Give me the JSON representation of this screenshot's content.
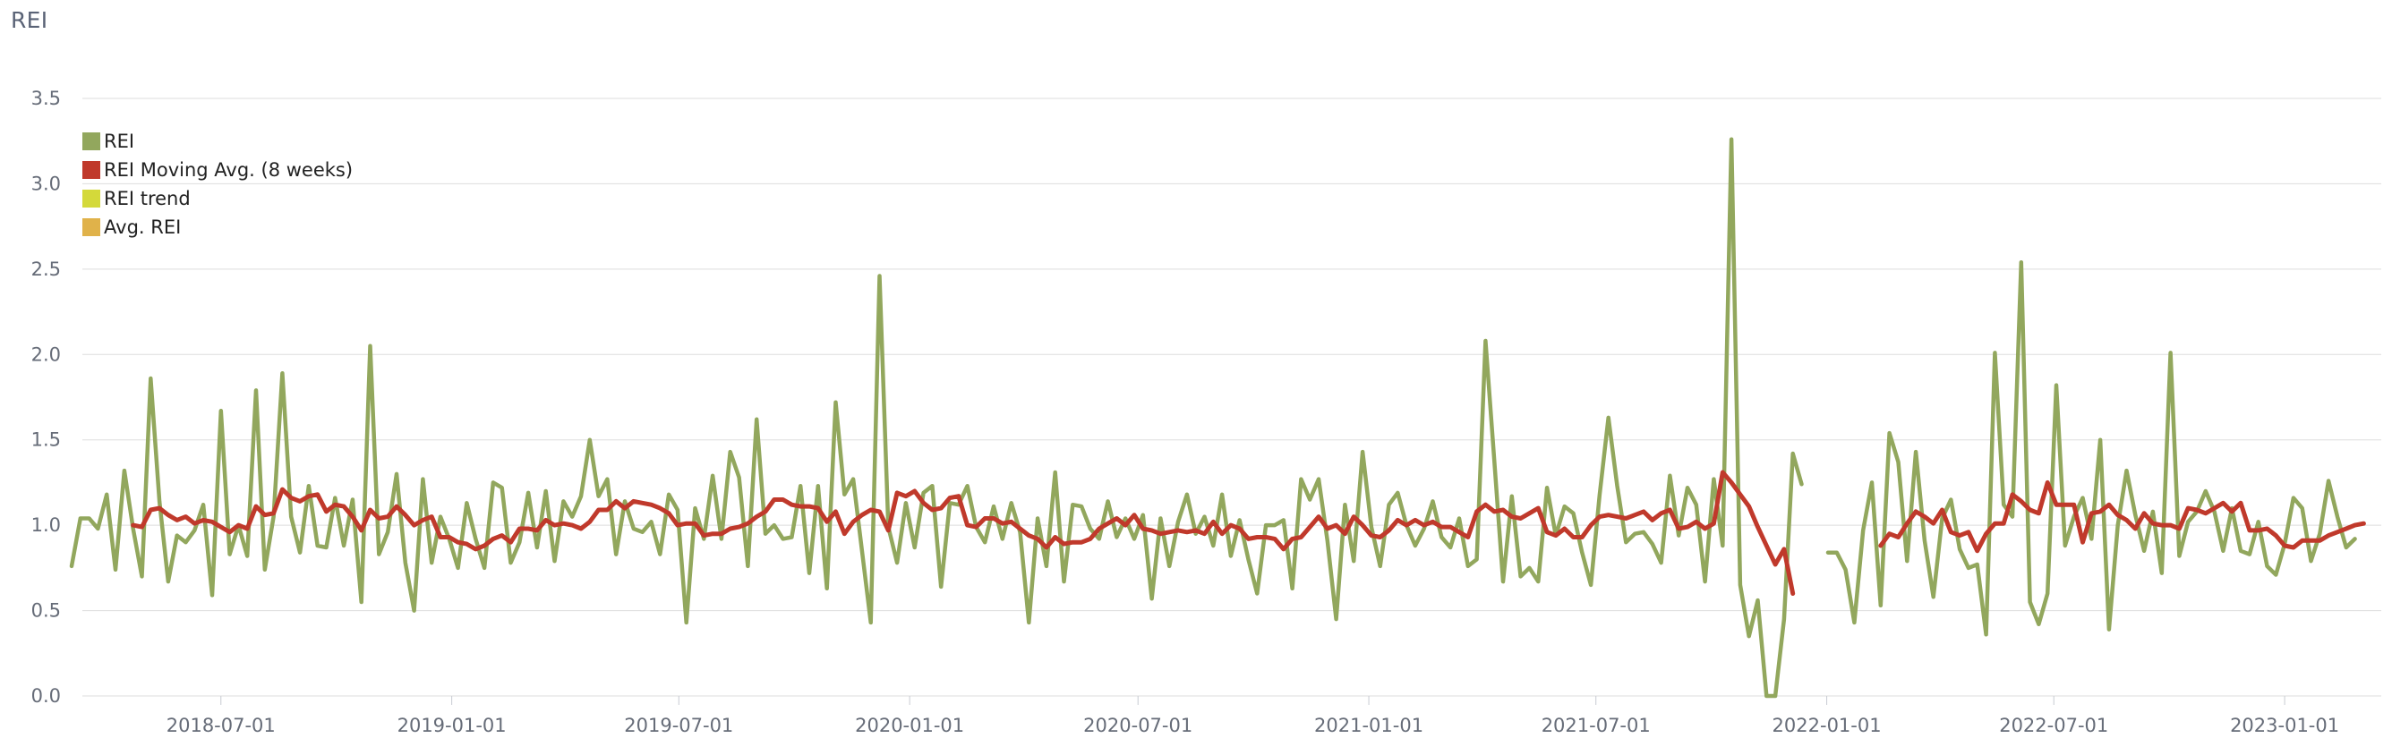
{
  "panel": {
    "title": "REI"
  },
  "colors": {
    "rei": "#92a75d",
    "moving_avg": "#c0392b",
    "trend": "#d4d93a",
    "avg": "#e0b24a",
    "grid": "#dddddd",
    "axis_text": "#666c78"
  },
  "chart_data": {
    "type": "line",
    "title": "REI",
    "xlabel": "",
    "ylabel": "",
    "x_range": [
      "2018-03-04",
      "2023-03-19"
    ],
    "ylim": [
      0,
      3.5
    ],
    "yticks": [
      0.0,
      0.5,
      1.0,
      1.5,
      2.0,
      2.5,
      3.0,
      3.5
    ],
    "ytick_labels": [
      "0.0",
      "0.5",
      "1.0",
      "1.5",
      "2.0",
      "2.5",
      "3.0",
      "3.5"
    ],
    "xticks": [
      "2018-07-01",
      "2019-01-01",
      "2019-07-01",
      "2020-01-01",
      "2020-07-01",
      "2021-01-01",
      "2021-07-01",
      "2022-01-01",
      "2022-07-01",
      "2023-01-01"
    ],
    "grid": true,
    "legend_position": "top-left",
    "x_start": "2018-03-04",
    "x_step_days": 7,
    "series": [
      {
        "name": "REI",
        "color": "#92a75d",
        "values": [
          0.76,
          1.04,
          1.04,
          0.98,
          1.18,
          0.74,
          1.32,
          0.98,
          0.7,
          1.86,
          1.14,
          0.67,
          0.94,
          0.9,
          0.97,
          1.12,
          0.59,
          1.67,
          0.83,
          1.0,
          0.82,
          1.79,
          0.74,
          1.05,
          1.89,
          1.05,
          0.84,
          1.23,
          0.88,
          0.87,
          1.16,
          0.88,
          1.15,
          0.55,
          2.05,
          0.83,
          0.96,
          1.3,
          0.78,
          0.5,
          1.27,
          0.78,
          1.05,
          0.92,
          0.75,
          1.13,
          0.92,
          0.75,
          1.25,
          1.22,
          0.78,
          0.9,
          1.19,
          0.87,
          1.2,
          0.79,
          1.14,
          1.05,
          1.17,
          1.5,
          1.17,
          1.27,
          0.83,
          1.14,
          0.98,
          0.96,
          1.02,
          0.83,
          1.18,
          1.09,
          0.43,
          1.1,
          0.92,
          1.29,
          0.92,
          1.43,
          1.28,
          0.76,
          1.62,
          0.95,
          1.0,
          0.92,
          0.93,
          1.23,
          0.72,
          1.23,
          0.63,
          1.72,
          1.18,
          1.27,
          0.85,
          0.43,
          2.46,
          0.99,
          0.78,
          1.13,
          0.87,
          1.19,
          1.23,
          0.64,
          1.13,
          1.12,
          1.23,
          0.99,
          0.9,
          1.11,
          0.92,
          1.13,
          0.96,
          0.43,
          1.04,
          0.76,
          1.31,
          0.67,
          1.12,
          1.11,
          0.98,
          0.92,
          1.14,
          0.93,
          1.04,
          0.92,
          1.06,
          0.57,
          1.04,
          0.76,
          1.02,
          1.18,
          0.95,
          1.05,
          0.88,
          1.18,
          0.82,
          1.03,
          0.8,
          0.6,
          1.0,
          1.0,
          1.03,
          0.63,
          1.27,
          1.15,
          1.27,
          0.91,
          0.45,
          1.12,
          0.79,
          1.43,
          0.99,
          0.76,
          1.12,
          1.19,
          1.0,
          0.88,
          0.98,
          1.14,
          0.93,
          0.87,
          1.04,
          0.76,
          0.8,
          2.08,
          1.38,
          0.67,
          1.17,
          0.7,
          0.75,
          0.67,
          1.22,
          0.94,
          1.11,
          1.07,
          0.84,
          0.65,
          1.18,
          1.63,
          1.23,
          0.9,
          0.95,
          0.96,
          0.89,
          0.78,
          1.29,
          0.94,
          1.22,
          1.12,
          0.67,
          1.27,
          0.88,
          3.26,
          0.65,
          0.35,
          0.56,
          0.0,
          0.0,
          0.45,
          1.42,
          1.24,
          null,
          null,
          0.84,
          0.84,
          0.74,
          0.43,
          0.97,
          1.25,
          0.53,
          1.54,
          1.37,
          0.79,
          1.43,
          0.91,
          0.58,
          1.04,
          1.15,
          0.86,
          0.75,
          0.77,
          0.36,
          2.01,
          1.12,
          1.05,
          2.54,
          0.55,
          0.42,
          0.6,
          1.82,
          0.88,
          1.05,
          1.16,
          0.92,
          1.5,
          0.39,
          1.0,
          1.32,
          1.06,
          0.85,
          1.08,
          0.72,
          2.01,
          0.82,
          1.02,
          1.08,
          1.2,
          1.08,
          0.85,
          1.1,
          0.85,
          0.83,
          1.02,
          0.76,
          0.71,
          0.89,
          1.16,
          1.1,
          0.79,
          0.95,
          1.26,
          1.05,
          0.87,
          0.92
        ]
      },
      {
        "name": "REI Moving Avg. (8 weeks)",
        "color": "#c0392b",
        "values": [
          null,
          null,
          null,
          null,
          null,
          null,
          null,
          1.0,
          0.99,
          1.09,
          1.1,
          1.06,
          1.03,
          1.05,
          1.01,
          1.03,
          1.02,
          0.99,
          0.96,
          1.0,
          0.98,
          1.11,
          1.06,
          1.07,
          1.21,
          1.16,
          1.14,
          1.17,
          1.18,
          1.08,
          1.12,
          1.11,
          1.05,
          0.97,
          1.09,
          1.04,
          1.05,
          1.11,
          1.06,
          1.0,
          1.03,
          1.05,
          0.93,
          0.93,
          0.9,
          0.89,
          0.86,
          0.88,
          0.92,
          0.94,
          0.9,
          0.98,
          0.98,
          0.97,
          1.03,
          1.0,
          1.01,
          1.0,
          0.98,
          1.02,
          1.09,
          1.09,
          1.14,
          1.1,
          1.14,
          1.13,
          1.12,
          1.1,
          1.07,
          1.0,
          1.01,
          1.01,
          0.94,
          0.95,
          0.95,
          0.98,
          0.99,
          1.01,
          1.05,
          1.08,
          1.15,
          1.15,
          1.12,
          1.11,
          1.11,
          1.1,
          1.02,
          1.08,
          0.95,
          1.02,
          1.06,
          1.09,
          1.08,
          0.97,
          1.19,
          1.17,
          1.2,
          1.13,
          1.09,
          1.1,
          1.16,
          1.17,
          1.0,
          0.99,
          1.04,
          1.04,
          1.01,
          1.02,
          0.98,
          0.94,
          0.92,
          0.87,
          0.93,
          0.89,
          0.9,
          0.9,
          0.92,
          0.98,
          1.01,
          1.04,
          1.0,
          1.06,
          0.98,
          0.97,
          0.95,
          0.96,
          0.97,
          0.96,
          0.97,
          0.95,
          1.02,
          0.95,
          1.0,
          0.98,
          0.92,
          0.93,
          0.93,
          0.92,
          0.86,
          0.92,
          0.93,
          0.99,
          1.05,
          0.98,
          1.0,
          0.95,
          1.05,
          1.0,
          0.94,
          0.93,
          0.97,
          1.03,
          1.0,
          1.03,
          1.0,
          1.02,
          0.99,
          0.99,
          0.96,
          0.93,
          1.08,
          1.12,
          1.08,
          1.09,
          1.05,
          1.04,
          1.07,
          1.1,
          0.96,
          0.94,
          0.98,
          0.93,
          0.93,
          1.0,
          1.05,
          1.06,
          1.05,
          1.04,
          1.06,
          1.08,
          1.03,
          1.07,
          1.09,
          0.98,
          0.99,
          1.02,
          0.98,
          1.01,
          1.31,
          1.25,
          1.18,
          1.11,
          0.99,
          0.88,
          0.77,
          0.86,
          0.6,
          null,
          null,
          null,
          null,
          null,
          null,
          null,
          null,
          null,
          0.88,
          0.95,
          0.93,
          1.01,
          1.08,
          1.05,
          1.01,
          1.09,
          0.96,
          0.94,
          0.96,
          0.85,
          0.95,
          1.01,
          1.01,
          1.18,
          1.14,
          1.09,
          1.07,
          1.25,
          1.12,
          1.12,
          1.12,
          0.9,
          1.07,
          1.08,
          1.12,
          1.06,
          1.03,
          0.98,
          1.07,
          1.01,
          1.0,
          1.0,
          0.98,
          1.1,
          1.09,
          1.07,
          1.1,
          1.13,
          1.08,
          1.13,
          0.97,
          0.97,
          0.98,
          0.94,
          0.88,
          0.87,
          0.91,
          0.91,
          0.91,
          0.94,
          0.96,
          0.98,
          1.0,
          1.01
        ]
      },
      {
        "name": "REI trend",
        "color": "#d4d93a",
        "values": []
      },
      {
        "name": "Avg. REI",
        "color": "#e0b24a",
        "values": []
      }
    ]
  }
}
